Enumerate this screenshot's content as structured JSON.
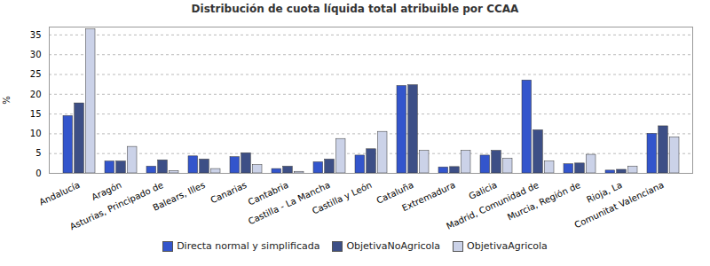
{
  "chart_data": {
    "type": "bar",
    "title": "Distribución de cuota líquida total atribuible por CCAA",
    "ylabel": "%",
    "categories": [
      "Andalucía",
      "Aragón",
      "Asturias, Principado de",
      "Balears, Illes",
      "Canarias",
      "Cantabria",
      "Castilla - La Mancha",
      "Castilla y León",
      "Cataluña",
      "Extremadura",
      "Galicia",
      "Madrid, Comunidad de",
      "Murcia, Región de",
      "Rioja, La",
      "Comunitat Valenciana"
    ],
    "series": [
      {
        "name": "Directa normal y simplificada",
        "color": "#3355cc",
        "values": [
          14.5,
          3.0,
          1.7,
          4.3,
          4.1,
          1.1,
          2.8,
          4.5,
          22.1,
          1.5,
          4.5,
          23.5,
          2.3,
          0.7,
          10.0
        ]
      },
      {
        "name": "ObjetivaNoAgricola",
        "color": "#3d4f86",
        "values": [
          17.7,
          3.0,
          3.3,
          3.5,
          5.1,
          1.7,
          3.5,
          6.1,
          22.3,
          1.6,
          5.7,
          10.9,
          2.5,
          0.9,
          11.9
        ]
      },
      {
        "name": "ObjetivaAgricola",
        "color": "#cbd2e8",
        "values": [
          36.4,
          6.7,
          0.6,
          1.1,
          2.1,
          0.4,
          8.7,
          10.5,
          5.7,
          5.7,
          3.7,
          3.0,
          4.7,
          1.7,
          9.1
        ]
      }
    ],
    "ylim": [
      0,
      37
    ],
    "yticks": [
      0,
      5,
      10,
      15,
      20,
      25,
      30,
      35
    ],
    "grid": true,
    "legend": "bottom"
  }
}
